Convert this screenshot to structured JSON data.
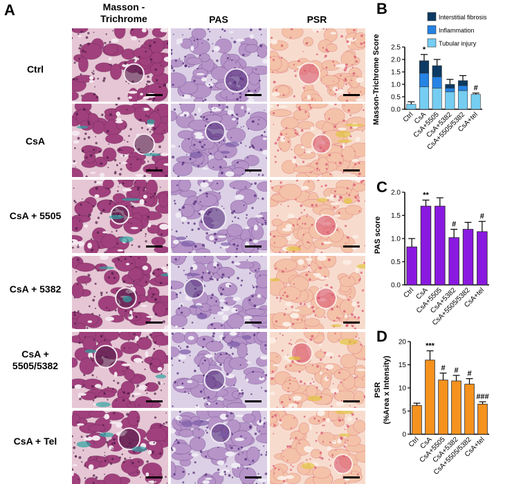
{
  "panels": {
    "a": "A",
    "b": "B",
    "c": "C",
    "d": "D"
  },
  "columns": {
    "mt": "Masson -\nTrichrome",
    "pas": "PAS",
    "psr": "PSR"
  },
  "rows": [
    "Ctrl",
    "CsA",
    "CsA + 5505",
    "CsA + 5382",
    "CsA +\n5505/5382",
    "CsA + Tel"
  ],
  "colors": {
    "fibrosis": "#0d3a63",
    "inflammation": "#2583e3",
    "tubular": "#75cdf2",
    "pas_bar": "#8a19e0",
    "psr_bar": "#f6921e",
    "mt_tissue": "#a0407c",
    "pas_tissue": "#b694c8",
    "psr_tissue": "#f3c2a8"
  },
  "chart_data": [
    {
      "id": "B",
      "type": "bar",
      "stacked": true,
      "categories": [
        "Ctrl",
        "CsA",
        "CsA+5505",
        "CsA+5382",
        "CsA+5505/5382",
        "CsA+tel"
      ],
      "series": [
        {
          "name": "Tubular injury",
          "values": [
            0.2,
            0.9,
            0.85,
            0.7,
            0.75,
            0.6
          ]
        },
        {
          "name": "Inflammation",
          "values": [
            0.0,
            0.55,
            0.45,
            0.15,
            0.2,
            0.0
          ]
        },
        {
          "name": "Interstitial fibrosis",
          "values": [
            0.0,
            0.5,
            0.45,
            0.15,
            0.2,
            0.0
          ]
        }
      ],
      "errors": [
        0.1,
        0.25,
        0.25,
        0.2,
        0.2,
        0.05
      ],
      "annotations": [
        "",
        "*",
        "",
        "",
        "",
        "#"
      ],
      "legend_order": [
        "Interstitial fibrosis",
        "Inflammation",
        "Tubular injury"
      ],
      "ylabel": "Masson-Trichrome Score",
      "ylim": [
        0,
        2.5
      ],
      "yticks": [
        "0.0",
        "0.5",
        "1.0",
        "1.5",
        "2.0",
        "2.5"
      ]
    },
    {
      "id": "C",
      "type": "bar",
      "categories": [
        "Ctrl",
        "CsA",
        "CsA+5505",
        "CsA+5382",
        "CsA+5505/5382",
        "CsA+tel"
      ],
      "values": [
        0.82,
        1.7,
        1.7,
        1.02,
        1.2,
        1.15
      ],
      "errors": [
        0.18,
        0.13,
        0.18,
        0.18,
        0.15,
        0.22
      ],
      "annotations": [
        "",
        "**",
        "",
        "#",
        "",
        "#"
      ],
      "ylabel": "PAS score",
      "ylim": [
        0,
        2.0
      ],
      "yticks": [
        "0.0",
        "0.5",
        "1.0",
        "1.5",
        "2.0"
      ]
    },
    {
      "id": "D",
      "type": "bar",
      "categories": [
        "Ctrl",
        "CsA",
        "CsA+5505",
        "CsA+5382",
        "CsA+5505/5382",
        "CsA+tel"
      ],
      "values": [
        6.2,
        16.0,
        11.7,
        11.5,
        10.8,
        6.5
      ],
      "errors": [
        0.5,
        2.0,
        1.5,
        1.2,
        1.2,
        0.5
      ],
      "annotations": [
        "",
        "***",
        "#",
        "#",
        "#",
        "###"
      ],
      "ylabel": "PSR\n(%Area x Intensity)",
      "ylim": [
        0,
        20
      ],
      "yticks": [
        "0",
        "5",
        "10",
        "15",
        "20"
      ]
    }
  ]
}
